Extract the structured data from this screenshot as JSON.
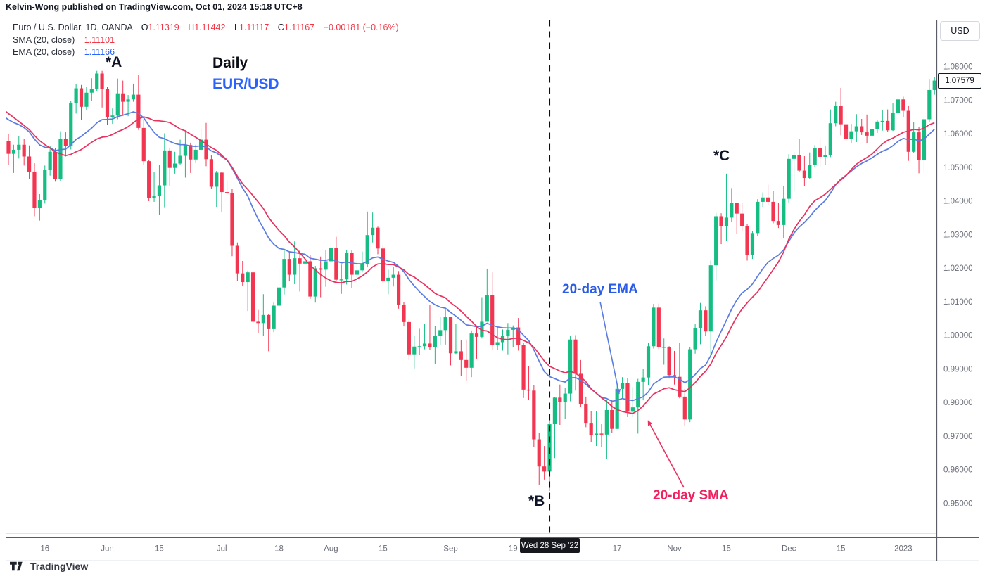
{
  "header": {
    "attribution": "Kelvin-Wong published on TradingView.com, Oct 01, 2024 15:18 UTC+8"
  },
  "legend": {
    "title": "Euro / U.S. Dollar, 1D, OANDA",
    "ohlc": {
      "o_label": "O",
      "o_value": "1.11319",
      "h_label": "H",
      "h_value": "1.11442",
      "l_label": "L",
      "l_value": "1.11117",
      "c_label": "C",
      "c_value": "1.11167",
      "change": "−0.00181 (−0.16%)"
    },
    "sma": {
      "label": "SMA (20, close)",
      "value": "1.11101"
    },
    "ema": {
      "label": "EMA (20, close)",
      "value": "1.11166"
    }
  },
  "annotations": {
    "point_a": "*A",
    "point_b": "*B",
    "point_c": "*C",
    "timeframe": "Daily",
    "pair": "EUR/USD",
    "ema_callout": "20-day EMA",
    "sma_callout": "20-day SMA"
  },
  "price_axis": {
    "currency_button": "USD",
    "last_price_label": "1.07579",
    "last_price_value": 1.07579,
    "ticks": [
      {
        "value": 1.08,
        "label": "1.08000"
      },
      {
        "value": 1.07,
        "label": "1.07000"
      },
      {
        "value": 1.06,
        "label": "1.06000"
      },
      {
        "value": 1.05,
        "label": "1.05000"
      },
      {
        "value": 1.04,
        "label": "1.04000"
      },
      {
        "value": 1.03,
        "label": "1.03000"
      },
      {
        "value": 1.02,
        "label": "1.02000"
      },
      {
        "value": 1.01,
        "label": "1.01000"
      },
      {
        "value": 1.0,
        "label": "1.00000"
      },
      {
        "value": 0.99,
        "label": "0.99000"
      },
      {
        "value": 0.98,
        "label": "0.98000"
      },
      {
        "value": 0.97,
        "label": "0.97000"
      },
      {
        "value": 0.96,
        "label": "0.96000"
      },
      {
        "value": 0.95,
        "label": "0.95000"
      }
    ]
  },
  "time_axis": {
    "ticks": [
      {
        "label": "16",
        "index": 7
      },
      {
        "label": "Jun",
        "index": 19
      },
      {
        "label": "15",
        "index": 29
      },
      {
        "label": "Jul",
        "index": 41
      },
      {
        "label": "18",
        "index": 52
      },
      {
        "label": "Aug",
        "index": 62
      },
      {
        "label": "15",
        "index": 72
      },
      {
        "label": "Sep",
        "index": 85
      },
      {
        "label": "19",
        "index": 97
      },
      {
        "label": "17",
        "index": 117
      },
      {
        "label": "Nov",
        "index": 128
      },
      {
        "label": "15",
        "index": 138
      },
      {
        "label": "Dec",
        "index": 150
      },
      {
        "label": "15",
        "index": 160
      },
      {
        "label": "2023",
        "index": 172
      }
    ],
    "crosshair_index": 104,
    "crosshair_label": "Wed 28 Sep '22"
  },
  "branding": {
    "name": "TradingView"
  },
  "colors": {
    "up": "#15bd82",
    "down": "#f23651",
    "sma": "#e8315e",
    "ema": "#5a7ce2",
    "accent_blue": "#2962ff",
    "accent_crimson": "#f0215e",
    "axis_text": "#6a6d78",
    "dark": "#131722",
    "border_light": "#e0e3eb",
    "axis_line": "#5a5d66",
    "dash_line": "#0b0d12"
  },
  "chart_data": {
    "type": "candlestick",
    "symbol": "EUR/USD",
    "interval": "1D",
    "title": "EUR/USD Daily with 20-day SMA and 20-day EMA",
    "legend_position": "top-left",
    "grid": false,
    "price_axis_visible_range": [
      0.9469,
      1.0939
    ],
    "overlays": [
      {
        "name": "SMA (20, close)",
        "kind": "sma",
        "length": 20
      },
      {
        "name": "EMA (20, close)",
        "kind": "ema",
        "length": 20
      }
    ],
    "ma_seed_closes": [
      1.0795,
      1.0782,
      1.0808,
      1.0765,
      1.0742,
      1.073,
      1.0712,
      1.0725,
      1.074,
      1.0718,
      1.069,
      1.066,
      1.062,
      1.058,
      1.0545,
      1.0505,
      1.0522,
      1.0585,
      1.0622,
      1.0605
    ],
    "candles": [
      [
        1.0578,
        1.06,
        1.0506,
        1.054
      ],
      [
        1.054,
        1.0567,
        1.0483,
        1.0552
      ],
      [
        1.0552,
        1.0592,
        1.0526,
        1.0567
      ],
      [
        1.0567,
        1.0585,
        1.0505,
        1.0532
      ],
      [
        1.0532,
        1.0565,
        1.0465,
        1.0487
      ],
      [
        1.0487,
        1.0512,
        1.0354,
        1.0379
      ],
      [
        1.0379,
        1.042,
        1.0341,
        1.0403
      ],
      [
        1.0403,
        1.0505,
        1.0392,
        1.0492
      ],
      [
        1.0492,
        1.0563,
        1.0475,
        1.0546
      ],
      [
        1.0546,
        1.0556,
        1.0457,
        1.0465
      ],
      [
        1.0465,
        1.0607,
        1.0459,
        1.0585
      ],
      [
        1.0585,
        1.0604,
        1.0532,
        1.0563
      ],
      [
        1.0563,
        1.0697,
        1.0553,
        1.069
      ],
      [
        1.069,
        1.0748,
        1.066,
        1.0735
      ],
      [
        1.0735,
        1.0745,
        1.0641,
        1.068
      ],
      [
        1.068,
        1.074,
        1.067,
        1.0722
      ],
      [
        1.0722,
        1.0765,
        1.0697,
        1.0733
      ],
      [
        1.0733,
        1.0787,
        1.0727,
        1.0779
      ],
      [
        1.0779,
        1.0787,
        1.0678,
        1.0734
      ],
      [
        1.0734,
        1.0739,
        1.0627,
        1.065
      ],
      [
        1.065,
        1.0675,
        1.0629,
        1.0654
      ],
      [
        1.0654,
        1.0764,
        1.0643,
        1.072
      ],
      [
        1.072,
        1.0758,
        1.0653,
        1.0695
      ],
      [
        1.0695,
        1.0715,
        1.0652,
        1.0702
      ],
      [
        1.0702,
        1.0749,
        1.0695,
        1.0716
      ],
      [
        1.0716,
        1.0774,
        1.0611,
        1.0617
      ],
      [
        1.0617,
        1.0643,
        1.0506,
        1.0518
      ],
      [
        1.0518,
        1.0521,
        1.0399,
        1.0408
      ],
      [
        1.0408,
        1.0485,
        1.0397,
        1.0414
      ],
      [
        1.0414,
        1.0507,
        1.0359,
        1.0446
      ],
      [
        1.0446,
        1.0601,
        1.0381,
        1.055
      ],
      [
        1.055,
        1.0557,
        1.0445,
        1.0498
      ],
      [
        1.0498,
        1.0546,
        1.0481,
        1.0511
      ],
      [
        1.0511,
        1.0582,
        1.0508,
        1.0534
      ],
      [
        1.0534,
        1.0605,
        1.0469,
        1.0566
      ],
      [
        1.0566,
        1.0573,
        1.0483,
        1.0523
      ],
      [
        1.0523,
        1.0567,
        1.0512,
        1.0552
      ],
      [
        1.0552,
        1.0614,
        1.0548,
        1.0582
      ],
      [
        1.0582,
        1.0632,
        1.0503,
        1.0524
      ],
      [
        1.0524,
        1.0535,
        1.0436,
        1.0442
      ],
      [
        1.0442,
        1.0489,
        1.0382,
        1.0484
      ],
      [
        1.0484,
        1.0486,
        1.0366,
        1.0426
      ],
      [
        1.0426,
        1.0461,
        1.042,
        1.0423
      ],
      [
        1.0423,
        1.0435,
        1.0235,
        1.0266
      ],
      [
        1.0266,
        1.0276,
        1.0162,
        1.0184
      ],
      [
        1.0184,
        1.0221,
        1.0146,
        1.0158
      ],
      [
        1.0158,
        1.0192,
        1.0072,
        1.0187
      ],
      [
        1.0187,
        1.0191,
        1.0032,
        1.004
      ],
      [
        1.004,
        1.0075,
        1.0006,
        1.0036
      ],
      [
        1.0036,
        1.0122,
        0.9998,
        1.006
      ],
      [
        1.006,
        1.0063,
        0.9952,
        1.0018
      ],
      [
        1.0018,
        1.0097,
        1.0009,
        1.0088
      ],
      [
        1.0088,
        1.0201,
        1.008,
        1.0142
      ],
      [
        1.0142,
        1.0257,
        1.0121,
        1.0227
      ],
      [
        1.0227,
        1.025,
        1.016,
        1.018
      ],
      [
        1.018,
        1.0279,
        1.0152,
        1.0229
      ],
      [
        1.0229,
        1.0254,
        1.013,
        1.0213
      ],
      [
        1.0213,
        1.0258,
        1.0184,
        1.022
      ],
      [
        1.022,
        1.0238,
        1.0108,
        1.0115
      ],
      [
        1.0115,
        1.0206,
        1.0097,
        1.0199
      ],
      [
        1.0199,
        1.0234,
        1.0113,
        1.0195
      ],
      [
        1.0195,
        1.0254,
        1.0144,
        1.022
      ],
      [
        1.022,
        1.0274,
        1.0205,
        1.026
      ],
      [
        1.026,
        1.0293,
        1.0155,
        1.0165
      ],
      [
        1.0165,
        1.021,
        1.0123,
        1.0166
      ],
      [
        1.0166,
        1.0254,
        1.0151,
        1.0246
      ],
      [
        1.0246,
        1.0253,
        1.0141,
        1.018
      ],
      [
        1.018,
        1.0222,
        1.0158,
        1.0193
      ],
      [
        1.0193,
        1.0249,
        1.0187,
        1.0211
      ],
      [
        1.0211,
        1.0368,
        1.0202,
        1.0298
      ],
      [
        1.0298,
        1.0365,
        1.0276,
        1.032
      ],
      [
        1.032,
        1.0323,
        1.0241,
        1.0258
      ],
      [
        1.0258,
        1.0268,
        1.0154,
        1.016
      ],
      [
        1.016,
        1.0195,
        1.0122,
        1.0171
      ],
      [
        1.0171,
        1.0203,
        1.0145,
        1.018
      ],
      [
        1.018,
        1.0191,
        1.0079,
        1.009
      ],
      [
        1.009,
        1.0098,
        1.0026,
        1.0039
      ],
      [
        1.0039,
        1.0046,
        0.9926,
        0.9943
      ],
      [
        0.9943,
        0.9997,
        0.9901,
        0.9966
      ],
      [
        0.9966,
        1.0019,
        0.9942,
        0.9967
      ],
      [
        0.9967,
        1.0033,
        0.9958,
        0.9975
      ],
      [
        0.9975,
        1.009,
        0.9957,
        0.9965
      ],
      [
        0.9965,
        1.0027,
        0.9914,
        0.9997
      ],
      [
        0.9997,
        1.0055,
        0.9972,
        1.0015
      ],
      [
        1.0015,
        1.0079,
        0.9972,
        1.0054
      ],
      [
        1.0054,
        1.0055,
        0.991,
        0.9946
      ],
      [
        0.9946,
        1.0033,
        0.9944,
        0.9952
      ],
      [
        0.9952,
        0.9985,
        0.9878,
        0.9926
      ],
      [
        0.9926,
        0.9987,
        0.9864,
        0.9903
      ],
      [
        0.9903,
        1.0014,
        0.9875,
        1.0005
      ],
      [
        1.0005,
        1.0029,
        0.993,
        0.9995
      ],
      [
        0.9995,
        1.0113,
        0.999,
        1.004
      ],
      [
        1.004,
        1.0198,
        1.004,
        1.012
      ],
      [
        1.012,
        1.0187,
        0.9955,
        0.997
      ],
      [
        0.997,
        1.0023,
        0.9955,
        0.9979
      ],
      [
        0.9979,
        1.0017,
        0.9954,
        0.9998
      ],
      [
        0.9998,
        1.0036,
        0.9943,
        1.0016
      ],
      [
        1.0016,
        1.0029,
        0.9964,
        1.0023
      ],
      [
        1.0023,
        1.0051,
        0.9954,
        0.997
      ],
      [
        0.997,
        0.9976,
        0.9813,
        0.9838
      ],
      [
        0.9838,
        0.9907,
        0.9807,
        0.9835
      ],
      [
        0.9835,
        0.9852,
        0.9667,
        0.969
      ],
      [
        0.969,
        0.9709,
        0.9554,
        0.9609
      ],
      [
        0.9609,
        0.967,
        0.957,
        0.9594
      ],
      [
        0.9594,
        0.975,
        0.9536,
        0.9735
      ],
      [
        0.9735,
        0.9815,
        0.9634,
        0.9814
      ],
      [
        0.9814,
        0.9853,
        0.9733,
        0.9802
      ],
      [
        0.9802,
        0.9844,
        0.9751,
        0.9826
      ],
      [
        0.9826,
        0.9999,
        0.9803,
        0.9987
      ],
      [
        0.9987,
        1.0,
        0.9835,
        0.9885
      ],
      [
        0.9885,
        0.9926,
        0.9787,
        0.9794
      ],
      [
        0.9794,
        0.9817,
        0.9726,
        0.9737
      ],
      [
        0.9737,
        0.9774,
        0.9682,
        0.9703
      ],
      [
        0.9703,
        0.9773,
        0.967,
        0.9707
      ],
      [
        0.9707,
        0.9735,
        0.9668,
        0.9704
      ],
      [
        0.9704,
        0.9807,
        0.9632,
        0.9777
      ],
      [
        0.9777,
        0.9807,
        0.971,
        0.9721
      ],
      [
        0.9721,
        0.9854,
        0.9721,
        0.984
      ],
      [
        0.984,
        0.9875,
        0.9812,
        0.9858
      ],
      [
        0.9858,
        0.9873,
        0.9756,
        0.9772
      ],
      [
        0.9772,
        0.9845,
        0.9756,
        0.9785
      ],
      [
        0.9785,
        0.987,
        0.9707,
        0.9861
      ],
      [
        0.9861,
        0.9899,
        0.9806,
        0.9874
      ],
      [
        0.9874,
        0.9976,
        0.9851,
        0.9967
      ],
      [
        0.9967,
        1.0093,
        0.996,
        1.0082
      ],
      [
        1.0082,
        1.0094,
        0.9958,
        0.9965
      ],
      [
        0.9965,
        0.999,
        0.9912,
        0.9965
      ],
      [
        0.9965,
        0.9967,
        0.9871,
        0.9881
      ],
      [
        0.9881,
        0.9953,
        0.9853,
        0.9876
      ],
      [
        0.9876,
        0.9976,
        0.9812,
        0.9817
      ],
      [
        0.9817,
        0.984,
        0.973,
        0.9749
      ],
      [
        0.9749,
        0.9965,
        0.9741,
        0.9958
      ],
      [
        0.9958,
        1.0034,
        0.9945,
        1.002
      ],
      [
        1.002,
        1.0096,
        0.9973,
        1.0074
      ],
      [
        1.0074,
        1.0086,
        0.9998,
        1.0011
      ],
      [
        1.0011,
        1.0222,
        0.9936,
        1.0208
      ],
      [
        1.0208,
        1.0364,
        1.0163,
        1.0354
      ],
      [
        1.0354,
        1.0363,
        1.0271,
        1.0325
      ],
      [
        1.0325,
        1.0481,
        1.028,
        1.035
      ],
      [
        1.035,
        1.0438,
        1.0336,
        1.0393
      ],
      [
        1.0393,
        1.0395,
        1.0301,
        1.0362
      ],
      [
        1.0362,
        1.0394,
        1.031,
        1.0325
      ],
      [
        1.0325,
        1.033,
        1.0222,
        1.0239
      ],
      [
        1.0239,
        1.031,
        1.0227,
        1.0304
      ],
      [
        1.0304,
        1.0405,
        1.0296,
        1.0397
      ],
      [
        1.0397,
        1.0425,
        1.0382,
        1.041
      ],
      [
        1.041,
        1.0448,
        1.0387,
        1.0397
      ],
      [
        1.0397,
        1.043,
        1.0333,
        1.034
      ],
      [
        1.034,
        1.0394,
        1.0319,
        1.0328
      ],
      [
        1.0328,
        1.0444,
        1.0289,
        1.0406
      ],
      [
        1.0406,
        1.0539,
        1.0394,
        1.0525
      ],
      [
        1.0525,
        1.0545,
        1.0428,
        1.0537
      ],
      [
        1.0537,
        1.0585,
        1.0487,
        1.049
      ],
      [
        1.049,
        1.0533,
        1.0443,
        1.0468
      ],
      [
        1.0468,
        1.0544,
        1.0464,
        1.0507
      ],
      [
        1.0507,
        1.0566,
        1.0499,
        1.0556
      ],
      [
        1.0556,
        1.0588,
        1.0503,
        1.0531
      ],
      [
        1.0531,
        1.0564,
        1.0506,
        1.0535
      ],
      [
        1.0535,
        1.0672,
        1.053,
        1.0631
      ],
      [
        1.0631,
        1.0695,
        1.0622,
        1.0683
      ],
      [
        1.0683,
        1.0736,
        1.0595,
        1.0628
      ],
      [
        1.0628,
        1.0664,
        1.0574,
        1.0585
      ],
      [
        1.0585,
        1.0629,
        1.0572,
        1.0607
      ],
      [
        1.0607,
        1.0658,
        1.0575,
        1.0622
      ],
      [
        1.0622,
        1.0644,
        1.0596,
        1.0604
      ],
      [
        1.0604,
        1.0657,
        1.0572,
        1.0594
      ],
      [
        1.0594,
        1.0636,
        1.0573,
        1.0614
      ],
      [
        1.0614,
        1.064,
        1.0602,
        1.0636
      ],
      [
        1.0636,
        1.067,
        1.0609,
        1.0638
      ],
      [
        1.0638,
        1.0672,
        1.0606,
        1.061
      ],
      [
        1.061,
        1.069,
        1.0608,
        1.0661
      ],
      [
        1.0661,
        1.0713,
        1.0641,
        1.0702
      ],
      [
        1.0702,
        1.071,
        1.065,
        1.0668
      ],
      [
        1.0668,
        1.0684,
        1.0519,
        1.0546
      ],
      [
        1.0546,
        1.0635,
        1.0542,
        1.0604
      ],
      [
        1.0604,
        1.0621,
        1.0482,
        1.0522
      ],
      [
        1.0522,
        1.0648,
        1.0483,
        1.0643
      ],
      [
        1.0643,
        1.0761,
        1.0634,
        1.073
      ],
      [
        1.073,
        1.0768,
        1.0716,
        1.0758
      ]
    ]
  }
}
